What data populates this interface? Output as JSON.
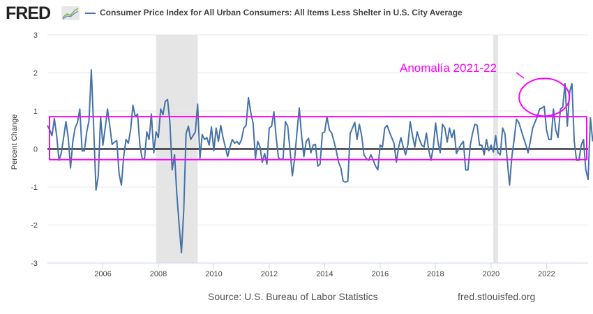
{
  "header": {
    "logo_text": "FRED",
    "logo_icon": "trend-lines-icon",
    "legend_label": "Consumer Price Index for All Urban Consumers: All Items Less Shelter in U.S. City Average",
    "series_color": "#4572a7"
  },
  "footer": {
    "source": "Source: U.S. Bureau of Labor Statistics",
    "url": "fred.stlouisfed.org"
  },
  "annotation": {
    "text": "Anomalía 2021-22",
    "color": "#ff00ff",
    "band_range": [
      -0.28,
      0.85
    ],
    "ellipse_center": [
      2021.92,
      1.36
    ],
    "highlight_years": [
      2021.2,
      2022.6
    ]
  },
  "chart_data": {
    "type": "line",
    "title": "Consumer Price Index for All Urban Consumers: All Items Less Shelter in U.S. City Average",
    "xlabel": "",
    "ylabel": "Percent Change",
    "ylim": [
      -3,
      3
    ],
    "xlim": [
      2004.0,
      2023.5
    ],
    "yticks": [
      -3,
      -2,
      -1,
      0,
      1,
      2,
      3
    ],
    "xticks": [
      "2006",
      "2008",
      "2010",
      "2012",
      "2014",
      "2016",
      "2018",
      "2020",
      "2022"
    ],
    "grid": true,
    "legend": "top-left",
    "recessions": [
      [
        2007.92,
        2009.42
      ],
      [
        2020.08,
        2020.25
      ]
    ],
    "frequency": "monthly",
    "start": "2004-01",
    "series": [
      {
        "name": "Consumer Price Index for All Urban Consumers: All Items Less Shelter in U.S. City Average",
        "values": [
          0.62,
          0.5,
          0.35,
          0.8,
          0.35,
          -0.3,
          -0.1,
          0.3,
          0.72,
          0.3,
          -0.5,
          0.2,
          0.55,
          0.7,
          1.05,
          -0.05,
          -0.05,
          0.45,
          0.75,
          2.08,
          0.6,
          -1.08,
          -0.7,
          0.85,
          0.1,
          0.55,
          1.05,
          0.6,
          0.12,
          0.18,
          0.22,
          -0.65,
          -0.95,
          -0.2,
          0.25,
          0.15,
          0.5,
          1.15,
          0.85,
          0.92,
          0.1,
          -0.25,
          -0.28,
          0.45,
          0.25,
          0.92,
          -0.1,
          0.45,
          0.3,
          1.05,
          0.9,
          1.25,
          1.3,
          0.7,
          -0.55,
          -0.15,
          -1.2,
          -2.0,
          -2.73,
          -1.6,
          0.4,
          0.6,
          0.25,
          0.35,
          0.45,
          1.18,
          -0.25,
          0.38,
          0.25,
          0.3,
          0.1,
          0.58,
          -0.05,
          0.55,
          0.2,
          0.62,
          0.3,
          0.05,
          -0.2,
          0.05,
          0.25,
          0.15,
          0.2,
          0.12,
          0.25,
          0.55,
          0.62,
          1.35,
          0.95,
          0.68,
          -0.25,
          0.2,
          0.05,
          -0.35,
          -0.12,
          -0.4,
          0.55,
          0.6,
          0.98,
          0.3,
          -0.23,
          -0.28,
          -0.25,
          0.72,
          0.6,
          -0.05,
          -0.7,
          -0.25,
          0.45,
          1.08,
          0.35,
          -0.2,
          0.2,
          0.28,
          -0.1,
          0.1,
          0.12,
          -0.45,
          -0.4,
          0.42,
          0.45,
          0.85,
          0.5,
          0.42,
          0.2,
          -0.05,
          -0.35,
          -0.5,
          -0.85,
          -0.87,
          -0.85,
          0.4,
          0.55,
          0.7,
          0.25,
          0.65,
          0.35,
          -0.15,
          -0.25,
          -0.3,
          -0.15,
          -0.3,
          -0.45,
          -0.55,
          0.1,
          0.05,
          0.55,
          0.62,
          0.45,
          0.3,
          0.15,
          -0.35,
          0.05,
          0.3,
          0.05,
          -0.15,
          0.12,
          0.72,
          0.35,
          0.05,
          0.45,
          0.25,
          0.1,
          0.05,
          0.42,
          -0.02,
          -0.3,
          0.05,
          0.68,
          0.2,
          -0.1,
          0.65,
          0.55,
          0.18,
          0.55,
          0.3,
          0.5,
          -0.12,
          0.0,
          0.12,
          0.2,
          -0.55,
          -0.55,
          0.1,
          0.42,
          0.65,
          0.62,
          0.1,
          0.1,
          -0.15,
          0.25,
          -0.05,
          0.1,
          -0.08,
          0.35,
          -0.1,
          -0.15,
          0.55,
          0.4,
          -0.3,
          -0.95,
          -0.2,
          0.25,
          0.78,
          0.7,
          0.5,
          0.3,
          0.12,
          -0.1,
          0.2,
          0.55,
          0.7,
          0.85,
          1.05,
          1.08,
          1.12,
          0.5,
          0.25,
          0.25,
          1.05,
          0.5,
          0.3,
          1.05,
          1.1,
          1.72,
          0.6,
          1.5,
          1.72,
          0.2,
          -0.3,
          -0.3,
          0.1,
          0.25,
          -0.55,
          -0.8,
          0.82,
          0.2
        ]
      }
    ]
  }
}
